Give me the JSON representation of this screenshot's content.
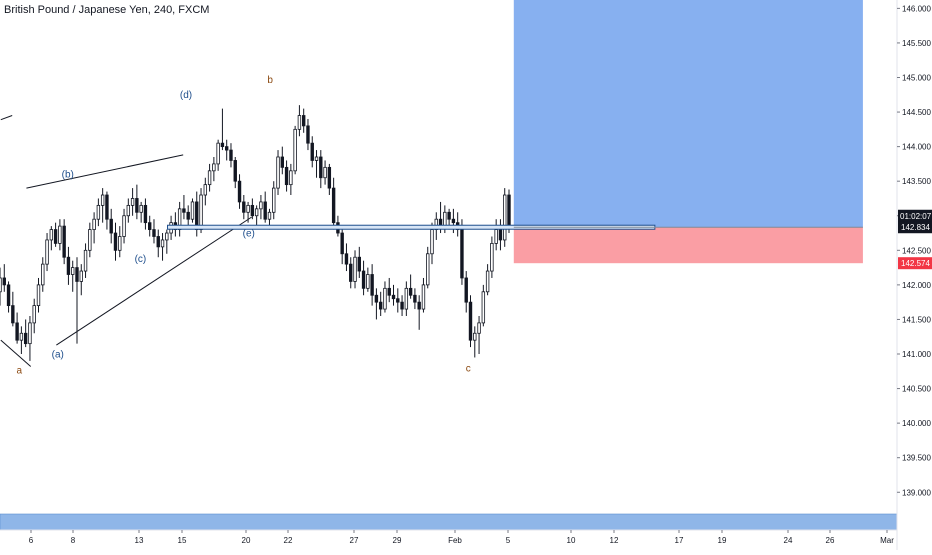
{
  "header": {
    "symbol_title": "British Pound / Japanese Yen, 240, FXCM"
  },
  "colors": {
    "candle": "#131722",
    "target_zone": "#7aa7ee",
    "stop_zone": "#f9949a",
    "entry_line": "#1e4e8c",
    "price_label_dark": "#131722",
    "price_label_red": "#f23645",
    "wave_blue": "#1e4e8c",
    "wave_brown": "#8b4a12",
    "bottom_band": "#8fb6e8"
  },
  "chart_data": {
    "type": "candlestick",
    "instrument": "British Pound / Japanese Yen",
    "timeframe": "240",
    "source": "FXCM",
    "ylim": [
      138.7,
      146.15
    ],
    "y_ticks": [
      "146.000",
      "145.500",
      "145.000",
      "144.500",
      "144.000",
      "143.500",
      "143.000",
      "142.500",
      "142.000",
      "141.500",
      "141.000",
      "140.500",
      "140.000",
      "139.500",
      "139.000"
    ],
    "x_ticks": [
      "6",
      "8",
      "13",
      "15",
      "20",
      "22",
      "27",
      "29",
      "Feb",
      "5",
      "10",
      "12",
      "17",
      "19",
      "24",
      "26",
      "Mar"
    ],
    "price_labels": [
      {
        "value": 142.834,
        "text": "142.834",
        "style": "dark"
      },
      {
        "value": 142.574,
        "text": "142.574",
        "style": "red"
      }
    ],
    "countdown_label": "01:02:07",
    "wave_labels": [
      {
        "text": "a",
        "series": "brown",
        "x_day": 4.6,
        "y": 140.72
      },
      {
        "text": "(a)",
        "series": "blue",
        "x_day": 7.3,
        "y": 140.95
      },
      {
        "text": "(b)",
        "series": "blue",
        "x_day": 8.0,
        "y": 143.55
      },
      {
        "text": "(c)",
        "series": "blue",
        "x_day": 13.1,
        "y": 142.33
      },
      {
        "text": "(d)",
        "series": "blue",
        "x_day": 16.3,
        "y": 144.7
      },
      {
        "text": "b",
        "series": "brown",
        "x_day": 22.2,
        "y": 144.92
      },
      {
        "text": "(e)",
        "series": "blue",
        "x_day": 20.7,
        "y": 142.7
      },
      {
        "text": "c",
        "series": "brown",
        "x_day": 36.1,
        "y": 140.75
      }
    ],
    "trendlines": [
      {
        "name": "upper-triangle-line",
        "x1_day": 5.1,
        "y1": 143.4,
        "x2_day": 16.1,
        "y2": 143.88
      },
      {
        "name": "lower-triangle-line",
        "x1_day": 7.2,
        "y1": 141.13,
        "x2_day": 20.9,
        "y2": 142.98
      },
      {
        "name": "left-bottom-line",
        "x1_day": 3.3,
        "y1": 141.2,
        "x2_day": 5.4,
        "y2": 140.82
      },
      {
        "name": "left-top-line",
        "x1_day": 3.3,
        "y1": 144.39,
        "x2_day": 4.1,
        "y2": 144.45
      }
    ],
    "entry_line": {
      "y": 142.834,
      "x1_day": 15.0,
      "x2_day": 49.2
    },
    "target_zone": {
      "y_low": 142.834,
      "y_high": 146.15,
      "x1_day": 39.3,
      "x2_day": 63.8
    },
    "stop_zone": {
      "y_low": 142.574,
      "y_high": 142.834,
      "x1_day": 39.3,
      "x2_day": 63.8
    },
    "candles": [
      [
        141.9,
        142.25,
        141.7,
        142.1
      ],
      [
        142.1,
        142.3,
        141.9,
        142.0
      ],
      [
        142.0,
        142.05,
        141.6,
        141.7
      ],
      [
        141.7,
        141.9,
        141.4,
        141.45
      ],
      [
        141.45,
        141.6,
        141.15,
        141.2
      ],
      [
        141.2,
        141.4,
        141.0,
        141.3
      ],
      [
        141.3,
        141.5,
        141.1,
        141.15
      ],
      [
        141.15,
        141.55,
        140.9,
        141.45
      ],
      [
        141.45,
        141.8,
        141.3,
        141.7
      ],
      [
        141.7,
        142.1,
        141.6,
        142.0
      ],
      [
        142.0,
        142.4,
        141.9,
        142.3
      ],
      [
        142.3,
        142.75,
        142.2,
        142.65
      ],
      [
        142.65,
        142.85,
        142.5,
        142.8
      ],
      [
        142.8,
        142.9,
        142.55,
        142.6
      ],
      [
        142.6,
        142.95,
        142.5,
        142.85
      ],
      [
        142.85,
        142.95,
        142.3,
        142.4
      ],
      [
        142.4,
        142.55,
        142.0,
        142.15
      ],
      [
        142.15,
        142.35,
        141.9,
        142.25
      ],
      [
        142.25,
        142.4,
        141.15,
        142.05
      ],
      [
        142.05,
        142.3,
        141.85,
        142.2
      ],
      [
        142.2,
        142.6,
        142.1,
        142.5
      ],
      [
        142.5,
        142.9,
        142.4,
        142.8
      ],
      [
        142.8,
        143.05,
        142.6,
        142.95
      ],
      [
        142.95,
        143.25,
        142.85,
        143.15
      ],
      [
        143.15,
        143.4,
        142.9,
        143.3
      ],
      [
        143.3,
        143.35,
        142.8,
        142.95
      ],
      [
        142.95,
        143.1,
        142.6,
        142.75
      ],
      [
        142.75,
        142.9,
        142.35,
        142.5
      ],
      [
        142.5,
        142.85,
        142.4,
        142.7
      ],
      [
        142.7,
        143.1,
        142.6,
        143.0
      ],
      [
        143.0,
        143.25,
        142.9,
        143.15
      ],
      [
        143.15,
        143.4,
        143.0,
        143.25
      ],
      [
        143.25,
        143.45,
        142.95,
        143.05
      ],
      [
        143.05,
        143.2,
        142.9,
        143.15
      ],
      [
        143.15,
        143.25,
        142.8,
        142.9
      ],
      [
        142.9,
        143.0,
        142.7,
        142.8
      ],
      [
        142.8,
        142.95,
        142.6,
        142.7
      ],
      [
        142.7,
        142.8,
        142.4,
        142.55
      ],
      [
        142.55,
        142.75,
        142.35,
        142.65
      ],
      [
        142.65,
        142.8,
        142.45,
        142.75
      ],
      [
        142.75,
        143.0,
        142.65,
        142.9
      ],
      [
        142.9,
        143.05,
        142.7,
        142.8
      ],
      [
        142.8,
        143.2,
        142.7,
        143.1
      ],
      [
        143.1,
        143.3,
        142.95,
        143.05
      ],
      [
        143.05,
        143.15,
        142.85,
        142.95
      ],
      [
        142.95,
        143.25,
        142.9,
        143.2
      ],
      [
        143.2,
        143.35,
        142.7,
        142.8
      ],
      [
        142.8,
        143.4,
        142.75,
        143.3
      ],
      [
        143.3,
        143.55,
        143.15,
        143.45
      ],
      [
        143.45,
        143.75,
        143.35,
        143.65
      ],
      [
        143.65,
        143.85,
        143.5,
        143.75
      ],
      [
        143.75,
        144.1,
        143.65,
        144.05
      ],
      [
        144.05,
        144.55,
        143.95,
        144.0
      ],
      [
        144.0,
        144.1,
        143.8,
        143.95
      ],
      [
        143.95,
        144.05,
        143.7,
        143.8
      ],
      [
        143.8,
        143.85,
        143.4,
        143.5
      ],
      [
        143.5,
        143.6,
        143.1,
        143.2
      ],
      [
        143.2,
        143.3,
        142.95,
        143.05
      ],
      [
        143.05,
        143.2,
        142.9,
        143.15
      ],
      [
        143.15,
        143.25,
        142.95,
        143.0
      ],
      [
        143.0,
        143.15,
        142.85,
        143.1
      ],
      [
        143.1,
        143.3,
        142.95,
        143.2
      ],
      [
        143.2,
        143.35,
        142.9,
        142.95
      ],
      [
        142.95,
        143.1,
        142.8,
        143.05
      ],
      [
        143.05,
        143.5,
        142.95,
        143.4
      ],
      [
        143.4,
        143.95,
        143.3,
        143.85
      ],
      [
        143.85,
        144.0,
        143.6,
        143.7
      ],
      [
        143.7,
        143.8,
        143.35,
        143.45
      ],
      [
        143.45,
        143.75,
        143.3,
        143.65
      ],
      [
        143.65,
        144.3,
        143.6,
        144.25
      ],
      [
        144.25,
        144.6,
        144.15,
        144.45
      ],
      [
        144.45,
        144.55,
        144.2,
        144.3
      ],
      [
        144.3,
        144.4,
        143.95,
        144.05
      ],
      [
        144.05,
        144.15,
        143.7,
        143.8
      ],
      [
        143.8,
        143.95,
        143.55,
        143.85
      ],
      [
        143.85,
        143.95,
        143.4,
        143.55
      ],
      [
        143.55,
        143.8,
        143.45,
        143.7
      ],
      [
        143.7,
        143.75,
        143.3,
        143.4
      ],
      [
        143.4,
        143.55,
        142.8,
        142.9
      ],
      [
        142.9,
        143.0,
        142.7,
        142.75
      ],
      [
        142.75,
        142.8,
        142.3,
        142.45
      ],
      [
        142.45,
        142.6,
        142.2,
        142.3
      ],
      [
        142.3,
        142.4,
        141.95,
        142.05
      ],
      [
        142.05,
        142.5,
        141.95,
        142.4
      ],
      [
        142.4,
        142.55,
        142.1,
        142.2
      ],
      [
        142.2,
        142.35,
        141.85,
        141.95
      ],
      [
        141.95,
        142.25,
        141.9,
        142.15
      ],
      [
        142.15,
        142.3,
        141.7,
        141.85
      ],
      [
        141.85,
        141.95,
        141.5,
        141.75
      ],
      [
        141.75,
        141.9,
        141.55,
        141.65
      ],
      [
        141.65,
        142.05,
        141.6,
        141.95
      ],
      [
        141.95,
        142.1,
        141.75,
        141.85
      ],
      [
        141.85,
        142.0,
        141.7,
        141.8
      ],
      [
        141.8,
        141.95,
        141.6,
        141.75
      ],
      [
        141.75,
        141.85,
        141.55,
        141.65
      ],
      [
        141.65,
        142.05,
        141.55,
        141.95
      ],
      [
        141.95,
        142.15,
        141.8,
        141.85
      ],
      [
        141.85,
        141.95,
        141.65,
        141.75
      ],
      [
        141.75,
        141.85,
        141.35,
        141.65
      ],
      [
        141.65,
        142.1,
        141.6,
        142.0
      ],
      [
        142.0,
        142.55,
        141.95,
        142.45
      ],
      [
        142.45,
        142.9,
        142.3,
        142.8
      ],
      [
        142.8,
        143.05,
        142.65,
        142.95
      ],
      [
        142.95,
        143.2,
        142.75,
        142.85
      ],
      [
        142.85,
        143.15,
        142.75,
        143.05
      ],
      [
        143.05,
        143.1,
        142.8,
        142.95
      ],
      [
        142.95,
        143.1,
        142.75,
        142.9
      ],
      [
        142.9,
        143.05,
        142.7,
        142.8
      ],
      [
        142.8,
        142.95,
        142.0,
        142.1
      ],
      [
        142.1,
        142.2,
        141.6,
        141.75
      ],
      [
        141.75,
        141.85,
        141.1,
        141.2
      ],
      [
        141.2,
        141.4,
        140.95,
        141.3
      ],
      [
        141.3,
        141.55,
        141.0,
        141.45
      ],
      [
        141.45,
        142.0,
        141.4,
        141.9
      ],
      [
        141.9,
        142.3,
        141.85,
        142.2
      ],
      [
        142.2,
        142.7,
        142.1,
        142.6
      ],
      [
        142.6,
        142.95,
        142.5,
        142.8
      ],
      [
        142.8,
        142.95,
        142.5,
        142.65
      ],
      [
        142.65,
        143.4,
        142.55,
        143.3
      ],
      [
        143.3,
        143.38,
        142.75,
        142.83
      ]
    ]
  }
}
